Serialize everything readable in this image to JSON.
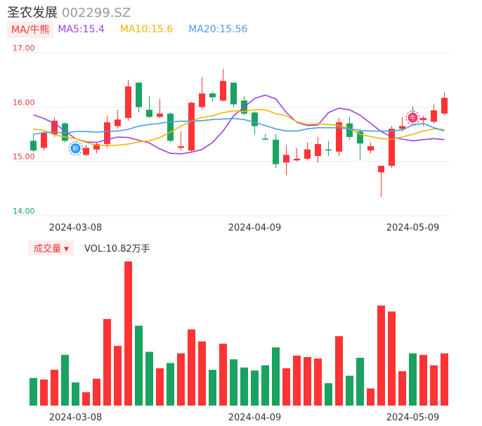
{
  "header": {
    "name": "圣农发展",
    "code": "002299.SZ"
  },
  "ma": {
    "button": "MA/牛熊",
    "items": [
      {
        "text": "MA5:15.4",
        "color": "#a040e0"
      },
      {
        "text": "MA10:15.6",
        "color": "#f5b400"
      },
      {
        "text": "MA20:15.56",
        "color": "#4a9de8"
      }
    ]
  },
  "volume": {
    "button": "成交量",
    "text": "VOL:10.82万手"
  },
  "colors": {
    "up": "#ff3333",
    "down": "#1aa260",
    "ma5": "#a040e0",
    "ma10": "#f5b400",
    "ma20": "#4a9de8"
  },
  "markers": [
    {
      "label": "新",
      "index": 4,
      "color": "#1e90ff"
    },
    {
      "label": "牛",
      "index": 36,
      "color": "#ff3366"
    }
  ],
  "chart_data": {
    "type": "candlestick",
    "y_ticks": [
      "17.00",
      "16.00",
      "15.00",
      "14.00"
    ],
    "ylim": [
      14,
      17
    ],
    "x_ticks": [
      {
        "label": "2024-03-08",
        "index": 4
      },
      {
        "label": "2024-04-09",
        "index": 21
      },
      {
        "label": "2024-05-09",
        "index": 36
      }
    ],
    "candles": [
      {
        "o": 15.38,
        "h": 15.5,
        "l": 15.17,
        "c": 15.2
      },
      {
        "o": 15.25,
        "h": 15.55,
        "l": 15.2,
        "c": 15.52
      },
      {
        "o": 15.5,
        "h": 15.8,
        "l": 15.45,
        "c": 15.75
      },
      {
        "o": 15.7,
        "h": 15.72,
        "l": 15.35,
        "c": 15.38
      },
      {
        "o": 15.23,
        "h": 15.28,
        "l": 15.15,
        "c": 15.2
      },
      {
        "o": 15.12,
        "h": 15.3,
        "l": 15.1,
        "c": 15.25
      },
      {
        "o": 15.22,
        "h": 15.35,
        "l": 15.15,
        "c": 15.32
      },
      {
        "o": 15.32,
        "h": 15.85,
        "l": 15.25,
        "c": 15.72
      },
      {
        "o": 15.65,
        "h": 15.95,
        "l": 15.6,
        "c": 15.77
      },
      {
        "o": 15.8,
        "h": 16.5,
        "l": 15.75,
        "c": 16.38
      },
      {
        "o": 16.45,
        "h": 16.45,
        "l": 15.9,
        "c": 16.0
      },
      {
        "o": 15.95,
        "h": 16.2,
        "l": 15.8,
        "c": 15.82
      },
      {
        "o": 15.82,
        "h": 16.15,
        "l": 15.8,
        "c": 15.88
      },
      {
        "o": 15.88,
        "h": 15.9,
        "l": 15.35,
        "c": 15.38
      },
      {
        "o": 15.25,
        "h": 15.55,
        "l": 15.2,
        "c": 15.28
      },
      {
        "o": 15.2,
        "h": 16.1,
        "l": 15.18,
        "c": 16.08
      },
      {
        "o": 16.0,
        "h": 16.55,
        "l": 15.95,
        "c": 16.25
      },
      {
        "o": 16.25,
        "h": 16.28,
        "l": 16.1,
        "c": 16.18
      },
      {
        "o": 16.12,
        "h": 16.7,
        "l": 16.1,
        "c": 16.48
      },
      {
        "o": 16.45,
        "h": 16.45,
        "l": 16.0,
        "c": 16.05
      },
      {
        "o": 16.12,
        "h": 16.2,
        "l": 15.85,
        "c": 15.88
      },
      {
        "o": 15.9,
        "h": 15.92,
        "l": 15.5,
        "c": 15.65
      },
      {
        "o": 15.42,
        "h": 15.5,
        "l": 15.4,
        "c": 15.4
      },
      {
        "o": 15.4,
        "h": 15.5,
        "l": 14.88,
        "c": 14.95
      },
      {
        "o": 14.98,
        "h": 15.3,
        "l": 14.75,
        "c": 15.12
      },
      {
        "o": 15.02,
        "h": 15.25,
        "l": 15.0,
        "c": 15.05
      },
      {
        "o": 15.05,
        "h": 15.35,
        "l": 15.02,
        "c": 15.22
      },
      {
        "o": 15.1,
        "h": 15.45,
        "l": 14.98,
        "c": 15.32
      },
      {
        "o": 15.22,
        "h": 15.38,
        "l": 15.1,
        "c": 15.2
      },
      {
        "o": 15.18,
        "h": 15.8,
        "l": 15.1,
        "c": 15.72
      },
      {
        "o": 15.7,
        "h": 15.82,
        "l": 15.4,
        "c": 15.45
      },
      {
        "o": 15.55,
        "h": 15.6,
        "l": 15.02,
        "c": 15.33
      },
      {
        "o": 15.2,
        "h": 15.35,
        "l": 15.15,
        "c": 15.28
      },
      {
        "o": 14.8,
        "h": 14.92,
        "l": 14.35,
        "c": 14.92
      },
      {
        "o": 14.92,
        "h": 15.65,
        "l": 14.88,
        "c": 15.6
      },
      {
        "o": 15.6,
        "h": 15.82,
        "l": 15.55,
        "c": 15.65
      },
      {
        "o": 15.8,
        "h": 16.02,
        "l": 15.7,
        "c": 15.76
      },
      {
        "o": 15.76,
        "h": 15.84,
        "l": 15.65,
        "c": 15.8
      },
      {
        "o": 15.73,
        "h": 16.05,
        "l": 15.7,
        "c": 15.94
      },
      {
        "o": 15.88,
        "h": 16.27,
        "l": 15.85,
        "c": 16.17
      }
    ],
    "ma5": [
      15.86,
      15.79,
      15.7,
      15.56,
      15.42,
      15.36,
      15.35,
      15.4,
      15.45,
      15.44,
      15.39,
      15.34,
      15.23,
      15.15,
      15.14,
      15.17,
      15.22,
      15.35,
      15.56,
      15.84,
      16.0,
      16.16,
      16.22,
      16.15,
      15.9,
      15.72,
      15.66,
      15.67,
      15.9,
      15.98,
      15.95,
      15.85,
      15.7,
      15.55,
      15.45,
      15.41,
      15.38,
      15.4,
      15.42,
      15.4
    ],
    "ma10": [
      15.6,
      15.57,
      15.49,
      15.45,
      15.42,
      15.35,
      15.3,
      15.29,
      15.3,
      15.32,
      15.36,
      15.38,
      15.44,
      15.54,
      15.65,
      15.74,
      15.81,
      15.84,
      15.9,
      15.93,
      15.92,
      15.95,
      15.95,
      15.88,
      15.84,
      15.73,
      15.68,
      15.69,
      15.68,
      15.66,
      15.6,
      15.5,
      15.46,
      15.42,
      15.41,
      15.45,
      15.5,
      15.56,
      15.6,
      15.59
    ],
    "ma20": [
      15.5,
      15.53,
      15.54,
      15.52,
      15.55,
      15.55,
      15.54,
      15.55,
      15.56,
      15.59,
      15.65,
      15.68,
      15.7,
      15.73,
      15.74,
      15.74,
      15.75,
      15.77,
      15.78,
      15.79,
      15.77,
      15.72,
      15.66,
      15.6,
      15.56,
      15.56,
      15.6,
      15.62,
      15.62,
      15.62,
      15.6,
      15.57,
      15.56,
      15.56,
      15.56,
      15.58,
      15.67,
      15.7,
      15.62,
      15.56
    ],
    "volumes": [
      3.7,
      3.5,
      4.8,
      6.8,
      3.1,
      1.8,
      3.6,
      11.6,
      8.0,
      19.3,
      10.7,
      7.2,
      5.0,
      5.7,
      7.0,
      10.2,
      8.6,
      4.8,
      8.3,
      6.2,
      5.1,
      4.7,
      5.4,
      7.8,
      5.0,
      6.7,
      6.5,
      6.3,
      3.0,
      9.3,
      4.0,
      6.4,
      2.3,
      13.4,
      12.6,
      4.6,
      7.0,
      6.8,
      5.4,
      7.0
    ]
  }
}
